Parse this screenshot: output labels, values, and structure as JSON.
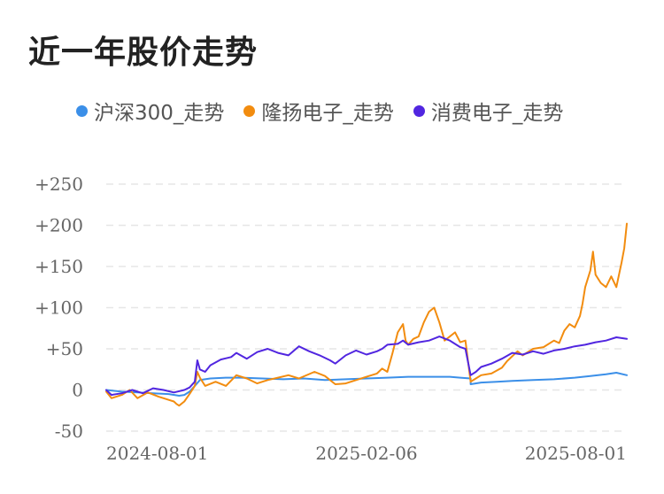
{
  "title": "近一年股价走势",
  "chart_data": {
    "type": "line",
    "title": "近一年股价走势",
    "xlabel": "",
    "ylabel": "",
    "x_tick_labels": [
      "2024-08-01",
      "2025-02-06",
      "2025-08-01"
    ],
    "y_ticks": [
      -50,
      0,
      50,
      100,
      150,
      200,
      250
    ],
    "y_tick_labels": [
      "-50",
      "0",
      "+50",
      "+100",
      "+150",
      "+200",
      "+250"
    ],
    "ylim": [
      -50,
      250
    ],
    "grid": true,
    "legend_position": "top",
    "series": [
      {
        "name": "沪深300_走势",
        "color": "#3b8fe8",
        "points": [
          [
            0,
            0
          ],
          [
            0.03,
            -2
          ],
          [
            0.06,
            -3
          ],
          [
            0.09,
            -4
          ],
          [
            0.12,
            -5
          ],
          [
            0.14,
            -7
          ],
          [
            0.15,
            -6
          ],
          [
            0.16,
            -2
          ],
          [
            0.17,
            5
          ],
          [
            0.18,
            12
          ],
          [
            0.2,
            14
          ],
          [
            0.23,
            15
          ],
          [
            0.26,
            15
          ],
          [
            0.3,
            14
          ],
          [
            0.34,
            13
          ],
          [
            0.38,
            14
          ],
          [
            0.42,
            12
          ],
          [
            0.46,
            13
          ],
          [
            0.5,
            14
          ],
          [
            0.54,
            15
          ],
          [
            0.58,
            16
          ],
          [
            0.62,
            16
          ],
          [
            0.66,
            16
          ],
          [
            0.68,
            15
          ],
          [
            0.7,
            14
          ],
          [
            0.7,
            7
          ],
          [
            0.72,
            9
          ],
          [
            0.75,
            10
          ],
          [
            0.78,
            11
          ],
          [
            0.82,
            12
          ],
          [
            0.86,
            13
          ],
          [
            0.9,
            15
          ],
          [
            0.93,
            17
          ],
          [
            0.96,
            19
          ],
          [
            0.98,
            21
          ],
          [
            1,
            18
          ]
        ]
      },
      {
        "name": "隆扬电子_走势",
        "color": "#f28c0f",
        "points": [
          [
            0,
            -2
          ],
          [
            0.01,
            -10
          ],
          [
            0.03,
            -6
          ],
          [
            0.045,
            0
          ],
          [
            0.06,
            -10
          ],
          [
            0.08,
            -3
          ],
          [
            0.1,
            -8
          ],
          [
            0.12,
            -12
          ],
          [
            0.13,
            -14
          ],
          [
            0.135,
            -17
          ],
          [
            0.14,
            -19
          ],
          [
            0.15,
            -14
          ],
          [
            0.16,
            -5
          ],
          [
            0.17,
            5
          ],
          [
            0.175,
            22
          ],
          [
            0.18,
            15
          ],
          [
            0.19,
            5
          ],
          [
            0.21,
            10
          ],
          [
            0.23,
            5
          ],
          [
            0.25,
            18
          ],
          [
            0.27,
            14
          ],
          [
            0.29,
            8
          ],
          [
            0.31,
            12
          ],
          [
            0.33,
            15
          ],
          [
            0.35,
            18
          ],
          [
            0.37,
            14
          ],
          [
            0.4,
            22
          ],
          [
            0.42,
            17
          ],
          [
            0.44,
            7
          ],
          [
            0.46,
            8
          ],
          [
            0.48,
            12
          ],
          [
            0.5,
            16
          ],
          [
            0.52,
            20
          ],
          [
            0.53,
            26
          ],
          [
            0.54,
            22
          ],
          [
            0.55,
            45
          ],
          [
            0.56,
            70
          ],
          [
            0.57,
            80
          ],
          [
            0.575,
            60
          ],
          [
            0.58,
            55
          ],
          [
            0.59,
            62
          ],
          [
            0.6,
            65
          ],
          [
            0.61,
            82
          ],
          [
            0.62,
            95
          ],
          [
            0.63,
            100
          ],
          [
            0.64,
            82
          ],
          [
            0.65,
            60
          ],
          [
            0.66,
            65
          ],
          [
            0.67,
            70
          ],
          [
            0.68,
            58
          ],
          [
            0.69,
            60
          ],
          [
            0.7,
            10
          ],
          [
            0.71,
            14
          ],
          [
            0.72,
            18
          ],
          [
            0.74,
            20
          ],
          [
            0.76,
            27
          ],
          [
            0.77,
            35
          ],
          [
            0.79,
            47
          ],
          [
            0.8,
            42
          ],
          [
            0.82,
            50
          ],
          [
            0.84,
            52
          ],
          [
            0.86,
            60
          ],
          [
            0.87,
            57
          ],
          [
            0.88,
            72
          ],
          [
            0.89,
            80
          ],
          [
            0.9,
            76
          ],
          [
            0.91,
            90
          ],
          [
            0.915,
            105
          ],
          [
            0.92,
            125
          ],
          [
            0.93,
            145
          ],
          [
            0.935,
            168
          ],
          [
            0.94,
            140
          ],
          [
            0.95,
            130
          ],
          [
            0.96,
            125
          ],
          [
            0.97,
            138
          ],
          [
            0.98,
            125
          ],
          [
            0.99,
            155
          ],
          [
            0.995,
            172
          ],
          [
            1,
            202
          ]
        ]
      },
      {
        "name": "消费电子_走势",
        "color": "#5126e0",
        "points": [
          [
            0,
            0
          ],
          [
            0.01,
            -6
          ],
          [
            0.03,
            -4
          ],
          [
            0.05,
            0
          ],
          [
            0.07,
            -4
          ],
          [
            0.09,
            2
          ],
          [
            0.11,
            0
          ],
          [
            0.13,
            -3
          ],
          [
            0.15,
            0
          ],
          [
            0.16,
            3
          ],
          [
            0.17,
            10
          ],
          [
            0.175,
            36
          ],
          [
            0.18,
            25
          ],
          [
            0.19,
            22
          ],
          [
            0.2,
            30
          ],
          [
            0.22,
            37
          ],
          [
            0.24,
            40
          ],
          [
            0.25,
            45
          ],
          [
            0.27,
            38
          ],
          [
            0.29,
            46
          ],
          [
            0.31,
            50
          ],
          [
            0.33,
            45
          ],
          [
            0.35,
            42
          ],
          [
            0.37,
            53
          ],
          [
            0.39,
            47
          ],
          [
            0.41,
            42
          ],
          [
            0.43,
            36
          ],
          [
            0.44,
            32
          ],
          [
            0.46,
            42
          ],
          [
            0.48,
            48
          ],
          [
            0.5,
            43
          ],
          [
            0.52,
            47
          ],
          [
            0.53,
            50
          ],
          [
            0.54,
            55
          ],
          [
            0.56,
            56
          ],
          [
            0.57,
            60
          ],
          [
            0.58,
            55
          ],
          [
            0.6,
            58
          ],
          [
            0.62,
            60
          ],
          [
            0.64,
            65
          ],
          [
            0.66,
            60
          ],
          [
            0.68,
            52
          ],
          [
            0.69,
            50
          ],
          [
            0.7,
            18
          ],
          [
            0.71,
            22
          ],
          [
            0.72,
            28
          ],
          [
            0.74,
            32
          ],
          [
            0.76,
            38
          ],
          [
            0.78,
            45
          ],
          [
            0.8,
            43
          ],
          [
            0.82,
            47
          ],
          [
            0.84,
            44
          ],
          [
            0.86,
            48
          ],
          [
            0.88,
            50
          ],
          [
            0.9,
            53
          ],
          [
            0.92,
            55
          ],
          [
            0.94,
            58
          ],
          [
            0.96,
            60
          ],
          [
            0.98,
            64
          ],
          [
            1,
            62
          ]
        ]
      }
    ]
  }
}
